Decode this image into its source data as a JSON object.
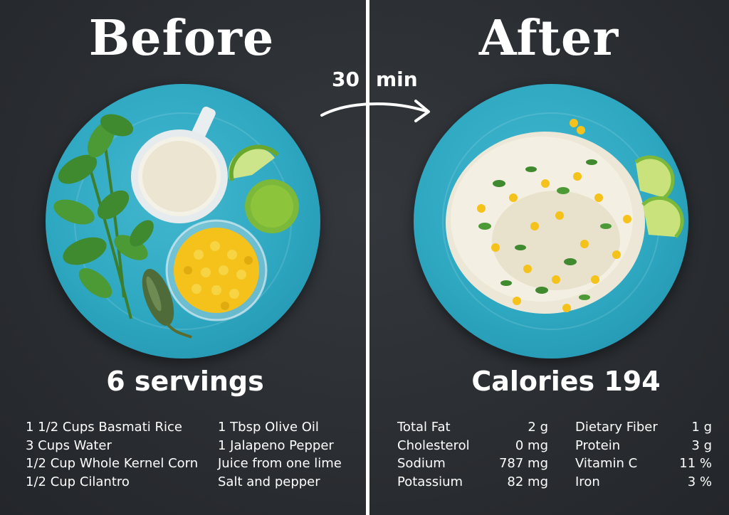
{
  "before_title": "Before",
  "after_title": "After",
  "time": {
    "number": "30",
    "unit": "min"
  },
  "servings": "6 servings",
  "calories": "Calories 194",
  "ingredients_col1": [
    "1 1/2 Cups Basmati Rice",
    "3 Cups Water",
    "1/2 Cup Whole Kernel Corn",
    "1/2 Cup Cilantro"
  ],
  "ingredients_col2": [
    "1 Tbsp Olive Oil",
    "1 Jalapeno Pepper",
    "Juice from one lime",
    "Salt and pepper"
  ],
  "nutrition_col1": [
    {
      "name": "Total Fat",
      "value": "2 g"
    },
    {
      "name": "Cholesterol",
      "value": "0 mg"
    },
    {
      "name": "Sodium",
      "value": "787 mg"
    },
    {
      "name": "Potassium",
      "value": "82 mg"
    }
  ],
  "nutrition_col2": [
    {
      "name": "Dietary Fiber",
      "value": "1 g"
    },
    {
      "name": "Protein",
      "value": "3 g"
    },
    {
      "name": "Vitamin C",
      "value": "11 %"
    },
    {
      "name": "Iron",
      "value": "3 %"
    }
  ],
  "colors": {
    "chalkboard": "#2a2d31",
    "plate": "#2ea7c1",
    "corn": "#f4c21b",
    "lime": "#8cc43c",
    "cilantro": "#3f8a2f",
    "jalapeno": "#4f6b3a"
  },
  "icons": [
    "arrow-icon",
    "plate-before-icon",
    "plate-after-icon"
  ]
}
